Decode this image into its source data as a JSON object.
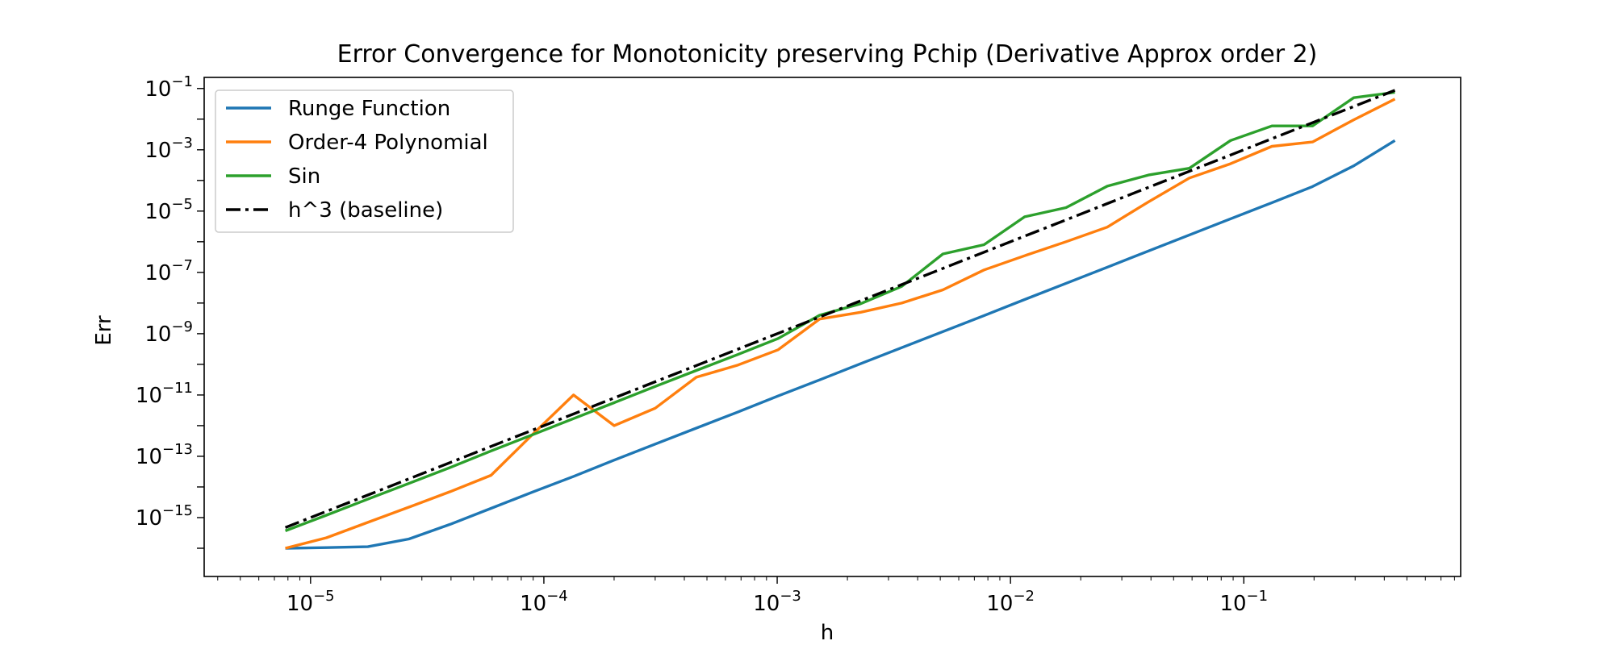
{
  "chart_data": {
    "type": "line",
    "title": "Error Convergence for Monotonicity preserving Pchip (Derivative Approx order 2)",
    "xlabel": "h",
    "ylabel": "Err",
    "xscale": "log",
    "yscale": "log",
    "xlim": [
      3.5e-06,
      0.85
    ],
    "ylim": [
      1.2e-17,
      0.23
    ],
    "x_ticks": [
      {
        "base": "10",
        "exp": "−5",
        "value": 1e-05
      },
      {
        "base": "10",
        "exp": "−4",
        "value": 0.0001
      },
      {
        "base": "10",
        "exp": "−3",
        "value": 0.001
      },
      {
        "base": "10",
        "exp": "−2",
        "value": 0.01
      },
      {
        "base": "10",
        "exp": "−1",
        "value": 0.1
      }
    ],
    "y_ticks": [
      {
        "base": "10",
        "exp": "−1",
        "value": 0.1
      },
      {
        "base": "10",
        "exp": "−3",
        "value": 0.001
      },
      {
        "base": "10",
        "exp": "−5",
        "value": 1e-05
      },
      {
        "base": "10",
        "exp": "−7",
        "value": 1e-07
      },
      {
        "base": "10",
        "exp": "−9",
        "value": 1e-09
      },
      {
        "base": "10",
        "exp": "−11",
        "value": 1e-11
      },
      {
        "base": "10",
        "exp": "−13",
        "value": 1e-13
      },
      {
        "base": "10",
        "exp": "−15",
        "value": 1e-15
      }
    ],
    "grid": false,
    "legend_position": "top-left",
    "x": [
      7.8e-06,
      1.17e-05,
      1.76e-05,
      2.64e-05,
      3.96e-05,
      5.94e-05,
      8.9e-05,
      0.000134,
      0.0002,
      0.0003,
      0.00045,
      0.00068,
      0.00101,
      0.00152,
      0.00228,
      0.00342,
      0.00513,
      0.0077,
      0.0115,
      0.0173,
      0.026,
      0.039,
      0.0584,
      0.0877,
      0.132,
      0.197,
      0.296,
      0.444
    ],
    "series": [
      {
        "name": "Runge Function",
        "color": "#1f77b4",
        "dash": "solid",
        "values": [
          1e-16,
          1.05e-16,
          1.12e-16,
          2e-16,
          6e-16,
          2e-15,
          6.7e-15,
          2.2e-14,
          7.5e-14,
          2.5e-13,
          8.3e-13,
          2.8e-12,
          9.3e-12,
          3.1e-11,
          1.05e-10,
          3.5e-10,
          1.17e-09,
          3.9e-09,
          1.3e-08,
          4.4e-08,
          1.48e-07,
          5e-07,
          1.67e-06,
          5.6e-06,
          1.88e-05,
          6.3e-05,
          0.0003,
          0.002
        ]
      },
      {
        "name": "Order-4 Polynomial",
        "color": "#ff7f0e",
        "dash": "solid",
        "values": [
          1e-16,
          2.2e-16,
          7e-16,
          2.2e-15,
          7e-15,
          2.4e-14,
          5e-13,
          1e-11,
          1e-12,
          3.7e-12,
          3.8e-11,
          9.5e-11,
          3e-10,
          3e-09,
          5e-09,
          1e-08,
          2.7e-08,
          1.2e-07,
          3.5e-07,
          1e-06,
          3e-06,
          2e-05,
          0.00012,
          0.00035,
          0.0013,
          0.0018,
          0.0095,
          0.045
        ]
      },
      {
        "name": "Sin",
        "color": "#2ca02c",
        "dash": "solid",
        "values": [
          3.7e-16,
          1.2e-15,
          4e-15,
          1.3e-14,
          4.3e-14,
          1.5e-13,
          5e-13,
          1.7e-12,
          5.6e-12,
          1.9e-11,
          6.3e-11,
          2.1e-10,
          7e-10,
          4e-09,
          9.5e-09,
          3.5e-08,
          4e-07,
          8e-07,
          6.5e-06,
          1.3e-05,
          6.5e-05,
          0.00015,
          0.00025,
          0.002,
          0.006,
          0.006,
          0.05,
          0.075
        ]
      },
      {
        "name": "h^3 (baseline)",
        "color": "#000000",
        "dash": "dashdot",
        "values": [
          4.75e-16,
          1.6e-15,
          5.45e-15,
          1.84e-14,
          6.21e-14,
          2.1e-13,
          7.05e-13,
          2.41e-12,
          8e-12,
          2.7e-11,
          9.11e-11,
          3.14e-10,
          1.03e-09,
          3.51e-09,
          1.19e-08,
          4e-08,
          1.35e-07,
          4.57e-07,
          1.52e-06,
          5.18e-06,
          1.76e-05,
          5.93e-05,
          0.000199,
          0.000674,
          0.0023,
          0.00765,
          0.0259,
          0.0875
        ]
      }
    ]
  }
}
